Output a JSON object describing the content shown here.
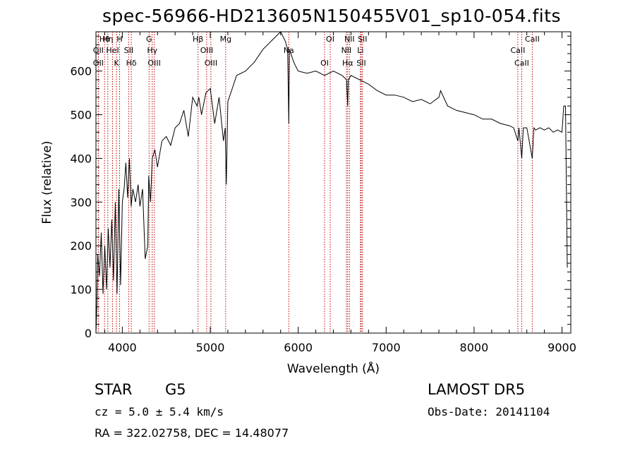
{
  "title": "spec-56966-HD213605N150455V01_sp10-054.fits",
  "info": {
    "obj_class": "STAR",
    "obj_subclass": "G5",
    "survey": "LAMOST  DR5",
    "cz": "cz = 5.0 ± 5.4 km/s",
    "obs_date": "Obs-Date: 20141104",
    "radec": "RA = 322.02758, DEC =  14.48077"
  },
  "chart_data": {
    "type": "line",
    "xlabel": "Wavelength (Å)",
    "ylabel": "Flux (relative)",
    "xlim": [
      3700,
      9100
    ],
    "ylim": [
      0,
      690
    ],
    "xticks": [
      4000,
      5000,
      6000,
      7000,
      8000,
      9000
    ],
    "yticks": [
      0,
      100,
      200,
      300,
      400,
      500,
      600
    ],
    "grid": false,
    "series": [
      {
        "x": [
          3700,
          3710,
          3720,
          3740,
          3760,
          3780,
          3800,
          3820,
          3840,
          3860,
          3880,
          3900,
          3920,
          3940,
          3960,
          3980,
          4000,
          4020,
          4040,
          4060,
          4080,
          4100,
          4120,
          4150,
          4180,
          4200,
          4230,
          4260,
          4290,
          4300,
          4320,
          4340,
          4370,
          4400,
          4450,
          4500,
          4550,
          4600,
          4650,
          4700,
          4750,
          4800,
          4850,
          4870,
          4900,
          4950,
          5000,
          5050,
          5100,
          5150,
          5170,
          5183,
          5200,
          5250,
          5300,
          5400,
          5500,
          5600,
          5700,
          5800,
          5850,
          5880,
          5893,
          5900,
          5950,
          6000,
          6100,
          6200,
          6300,
          6400,
          6500,
          6550,
          6563,
          6570,
          6600,
          6700,
          6800,
          6900,
          7000,
          7100,
          7200,
          7300,
          7400,
          7500,
          7600,
          7620,
          7700,
          7800,
          7900,
          8000,
          8100,
          8200,
          8300,
          8400,
          8450,
          8498,
          8510,
          8542,
          8560,
          8600,
          8662,
          8680,
          8700,
          8750,
          8800,
          8850,
          8900,
          8950,
          9000,
          9020,
          9040,
          9060
        ],
        "y": [
          0,
          60,
          180,
          130,
          230,
          90,
          200,
          100,
          240,
          150,
          260,
          120,
          300,
          90,
          330,
          110,
          300,
          330,
          390,
          310,
          400,
          290,
          330,
          300,
          340,
          290,
          330,
          170,
          200,
          360,
          300,
          400,
          420,
          380,
          440,
          450,
          430,
          470,
          480,
          510,
          450,
          540,
          520,
          540,
          500,
          550,
          560,
          480,
          540,
          440,
          470,
          340,
          530,
          560,
          590,
          600,
          620,
          650,
          670,
          690,
          670,
          650,
          480,
          650,
          620,
          600,
          595,
          600,
          590,
          600,
          590,
          580,
          520,
          580,
          590,
          580,
          570,
          555,
          545,
          545,
          540,
          530,
          535,
          525,
          540,
          555,
          520,
          510,
          505,
          500,
          490,
          490,
          480,
          475,
          470,
          440,
          470,
          400,
          470,
          470,
          400,
          470,
          465,
          470,
          465,
          470,
          460,
          465,
          460,
          520,
          520,
          150
        ]
      }
    ],
    "line_markers": [
      {
        "wave": 3798,
        "label": "Hθ"
      },
      {
        "wave": 3727,
        "label": "OII"
      },
      {
        "wave": 3727,
        "label": "OII"
      },
      {
        "wave": 3835,
        "label": "Hη"
      },
      {
        "wave": 3889,
        "label": "HeI"
      },
      {
        "wave": 3934,
        "label": "K"
      },
      {
        "wave": 3969,
        "label": "H"
      },
      {
        "wave": 4072,
        "label": "SII"
      },
      {
        "wave": 4102,
        "label": "Hδ"
      },
      {
        "wave": 4304,
        "label": "G"
      },
      {
        "wave": 4340,
        "label": "Hγ"
      },
      {
        "wave": 4363,
        "label": "OIII"
      },
      {
        "wave": 4861,
        "label": "Hβ"
      },
      {
        "wave": 4959,
        "label": "OIII"
      },
      {
        "wave": 5007,
        "label": "OIII"
      },
      {
        "wave": 5175,
        "label": "Mg"
      },
      {
        "wave": 5893,
        "label": "Na"
      },
      {
        "wave": 6300,
        "label": "OI"
      },
      {
        "wave": 6364,
        "label": "OI"
      },
      {
        "wave": 6548,
        "label": "NII"
      },
      {
        "wave": 6563,
        "label": "Hα"
      },
      {
        "wave": 6583,
        "label": "NII"
      },
      {
        "wave": 6708,
        "label": "Li"
      },
      {
        "wave": 6717,
        "label": "SII"
      },
      {
        "wave": 6731,
        "label": "SII"
      },
      {
        "wave": 8498,
        "label": "CaII"
      },
      {
        "wave": 8542,
        "label": "CaII"
      },
      {
        "wave": 8662,
        "label": "CaII"
      }
    ]
  }
}
